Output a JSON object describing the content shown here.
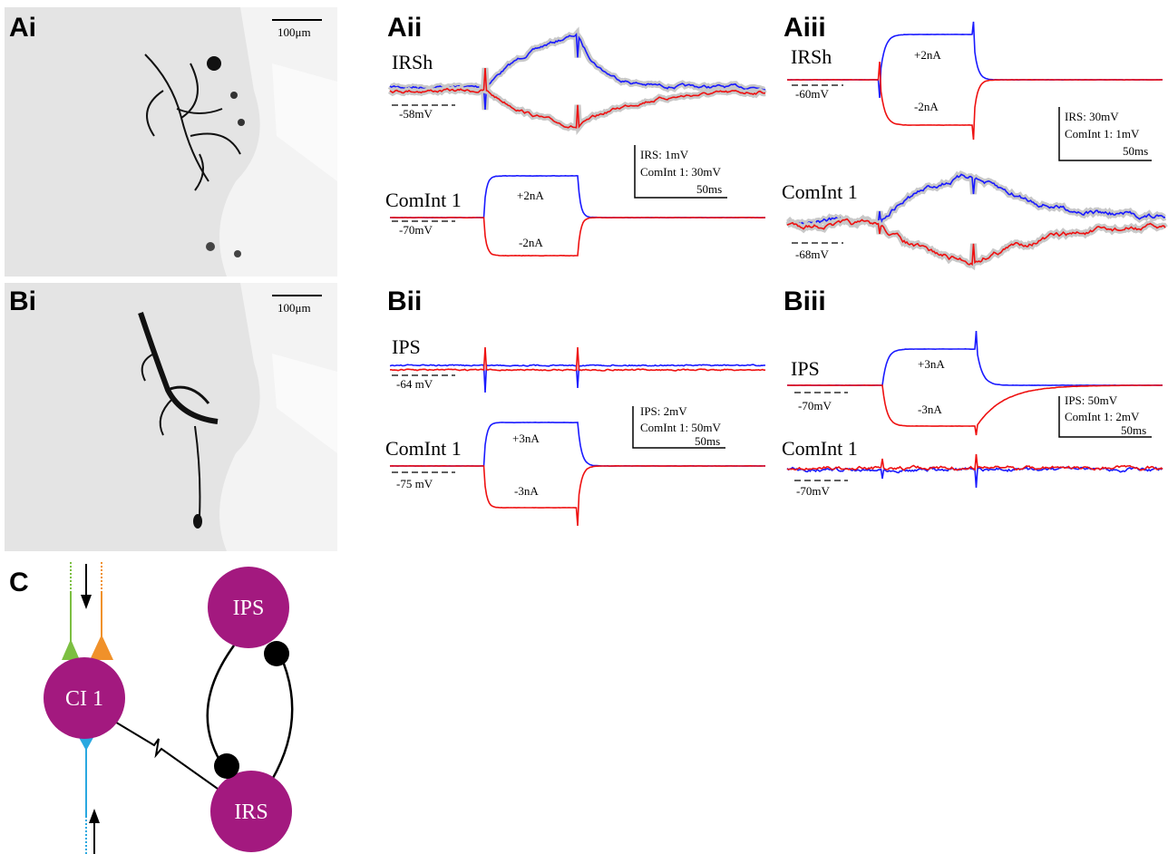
{
  "panels": {
    "Ai": {
      "label": "Ai",
      "scale": "100μm"
    },
    "Aii": {
      "label": "Aii",
      "top_trace": "IRSh",
      "top_rest": "-58mV",
      "bottom_trace": "ComInt 1",
      "bottom_rest": "-70mV",
      "pos_current": "+2nA",
      "neg_current": "-2nA",
      "scale_lines": [
        "IRS: 1mV",
        "ComInt 1: 30mV",
        "50ms"
      ]
    },
    "Aiii": {
      "label": "Aiii",
      "top_trace": "IRSh",
      "top_rest": "-60mV",
      "bottom_trace": "ComInt 1",
      "bottom_rest": "-68mV",
      "pos_current": "+2nA",
      "neg_current": "-2nA",
      "scale_lines": [
        "IRS: 30mV",
        "ComInt 1: 1mV",
        "50ms"
      ]
    },
    "Bi": {
      "label": "Bi",
      "scale": "100μm"
    },
    "Bii": {
      "label": "Bii",
      "top_trace": "IPS",
      "top_rest": "-64 mV",
      "bottom_trace": "ComInt 1",
      "bottom_rest": "-75 mV",
      "pos_current": "+3nA",
      "neg_current": "-3nA",
      "scale_lines": [
        "IPS: 2mV",
        "ComInt 1: 50mV",
        "50ms"
      ]
    },
    "Biii": {
      "label": "Biii",
      "top_trace": "IPS",
      "top_rest": "-70mV",
      "bottom_trace": "ComInt 1",
      "bottom_rest": "-70mV",
      "pos_current": "+3nA",
      "neg_current": "-3nA",
      "scale_lines": [
        "IPS: 50mV",
        "ComInt 1: 2mV",
        "50ms"
      ]
    },
    "C": {
      "label": "C",
      "nodes": [
        "IPS",
        "CI 1",
        "IRS"
      ]
    }
  }
}
